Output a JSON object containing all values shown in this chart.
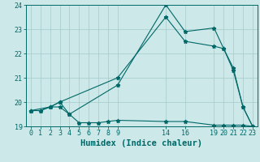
{
  "background_color": "#cce8e8",
  "grid_color": "#aacece",
  "line_color": "#006868",
  "line1_x": [
    0,
    1,
    2,
    3,
    4,
    5,
    6,
    7,
    8,
    9,
    14,
    16,
    19,
    20,
    21,
    22,
    23
  ],
  "line1_y": [
    19.65,
    19.65,
    19.8,
    19.8,
    19.5,
    19.15,
    19.15,
    19.15,
    19.2,
    19.25,
    19.2,
    19.2,
    19.05,
    19.05,
    19.05,
    19.05,
    19.0
  ],
  "line2_x": [
    0,
    1,
    2,
    3,
    4,
    9,
    14,
    16,
    19,
    20,
    21,
    22,
    23
  ],
  "line2_y": [
    19.65,
    19.65,
    19.8,
    20.0,
    19.5,
    20.7,
    24.0,
    22.9,
    23.05,
    22.2,
    21.4,
    19.8,
    19.0
  ],
  "line3_x": [
    0,
    2,
    3,
    9,
    14,
    16,
    19,
    20,
    21,
    22,
    23
  ],
  "line3_y": [
    19.65,
    19.8,
    20.0,
    21.0,
    23.5,
    22.5,
    22.3,
    22.2,
    21.3,
    19.8,
    19.0
  ],
  "xlabel": "Humidex (Indice chaleur)",
  "xlim": [
    -0.5,
    23.5
  ],
  "ylim": [
    19.0,
    24.0
  ],
  "yticks": [
    19,
    20,
    21,
    22,
    23,
    24
  ],
  "xticks": [
    0,
    1,
    2,
    3,
    4,
    5,
    6,
    7,
    8,
    9,
    14,
    16,
    19,
    20,
    21,
    22,
    23
  ],
  "xlabel_fontsize": 7.5,
  "tick_fontsize": 6.0
}
